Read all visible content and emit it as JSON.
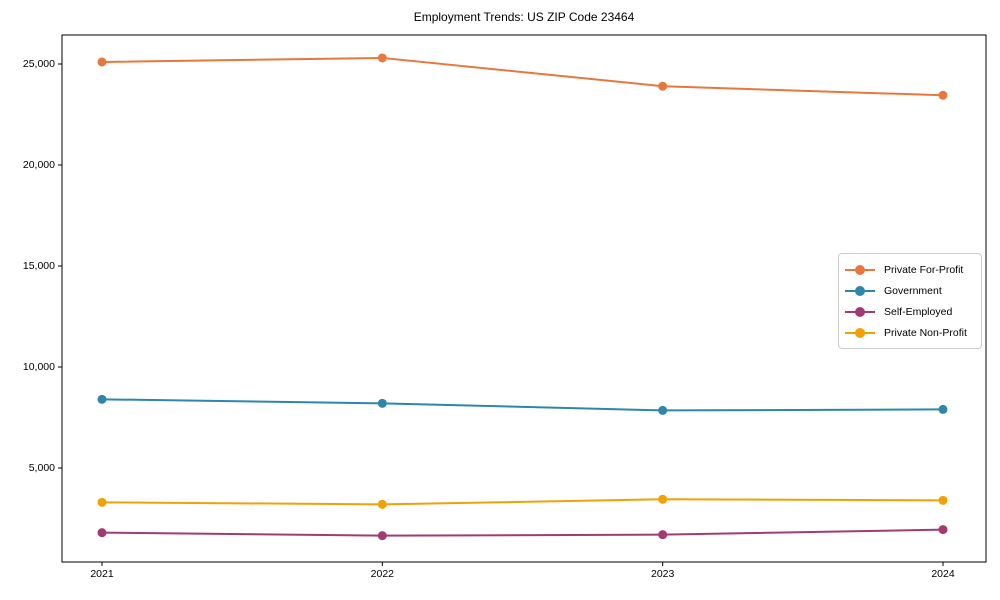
{
  "title": "Employment Trends: US ZIP Code 23464",
  "chart_data": {
    "type": "line",
    "title": "Employment Trends: US ZIP Code 23464",
    "xlabel": "",
    "ylabel": "",
    "x": [
      "2021",
      "2022",
      "2023",
      "2024"
    ],
    "series": [
      {
        "name": "Private For-Profit",
        "color": "#E8773D",
        "values": [
          25100,
          25300,
          23900,
          23450
        ]
      },
      {
        "name": "Government",
        "color": "#2E86AB",
        "values": [
          8400,
          8200,
          7850,
          7900
        ]
      },
      {
        "name": "Self-Employed",
        "color": "#A23B72",
        "values": [
          1800,
          1650,
          1700,
          1950
        ]
      },
      {
        "name": "Private Non-Profit",
        "color": "#F2A104",
        "values": [
          3300,
          3200,
          3450,
          3400
        ]
      }
    ],
    "yticks": [
      5000,
      10000,
      15000,
      20000,
      25000
    ],
    "ytick_labels": [
      "5,000",
      "10,000",
      "15,000",
      "20,000",
      "25,000"
    ],
    "xtick_labels": [
      "2021",
      "2022",
      "2023",
      "2024"
    ],
    "ylim": [
      340,
      26440
    ],
    "grid": false,
    "marker": "circle",
    "legend_position": "middle-right",
    "background_color": "#ffffff",
    "axis_color": "#000000"
  }
}
